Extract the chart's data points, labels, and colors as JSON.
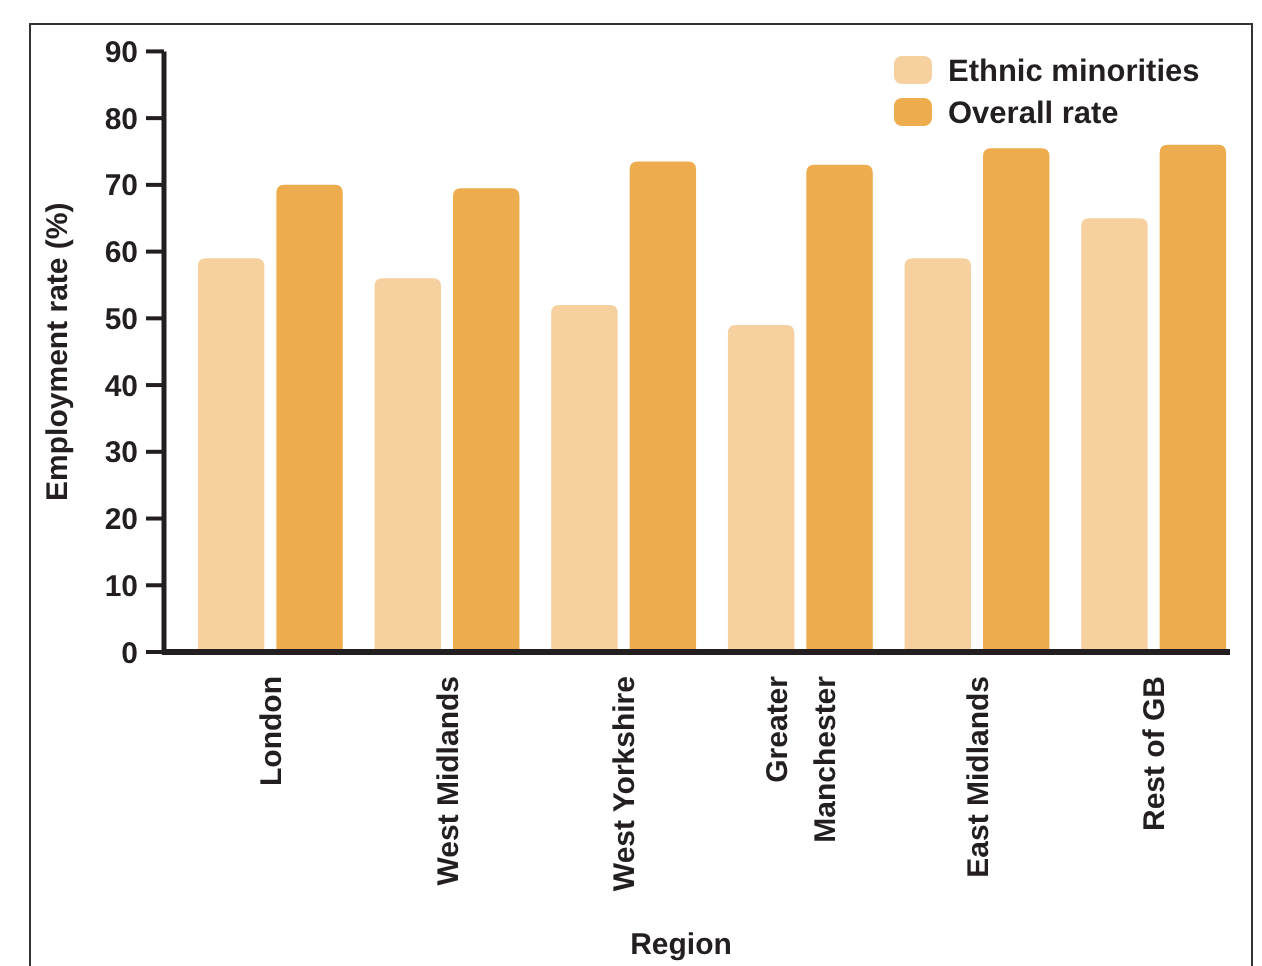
{
  "chart_data": {
    "type": "bar",
    "xlabel": "Region",
    "ylabel": "Employment rate (%)",
    "categories": [
      "London",
      "West Midlands",
      "West Yorkshire",
      "Greater Manchester",
      "East Midlands",
      "Rest of GB"
    ],
    "series": [
      {
        "name": "Ethnic minorities",
        "color": "#f6d09e",
        "values": [
          59,
          56,
          52,
          49,
          59,
          65
        ]
      },
      {
        "name": "Overall rate",
        "color": "#edad4e",
        "values": [
          70,
          69.5,
          73.5,
          73,
          75.5,
          76
        ]
      }
    ],
    "ylim": [
      0,
      90
    ],
    "yticks": [
      0,
      10,
      20,
      30,
      40,
      50,
      60,
      70,
      80,
      90
    ],
    "legend": "top right"
  }
}
